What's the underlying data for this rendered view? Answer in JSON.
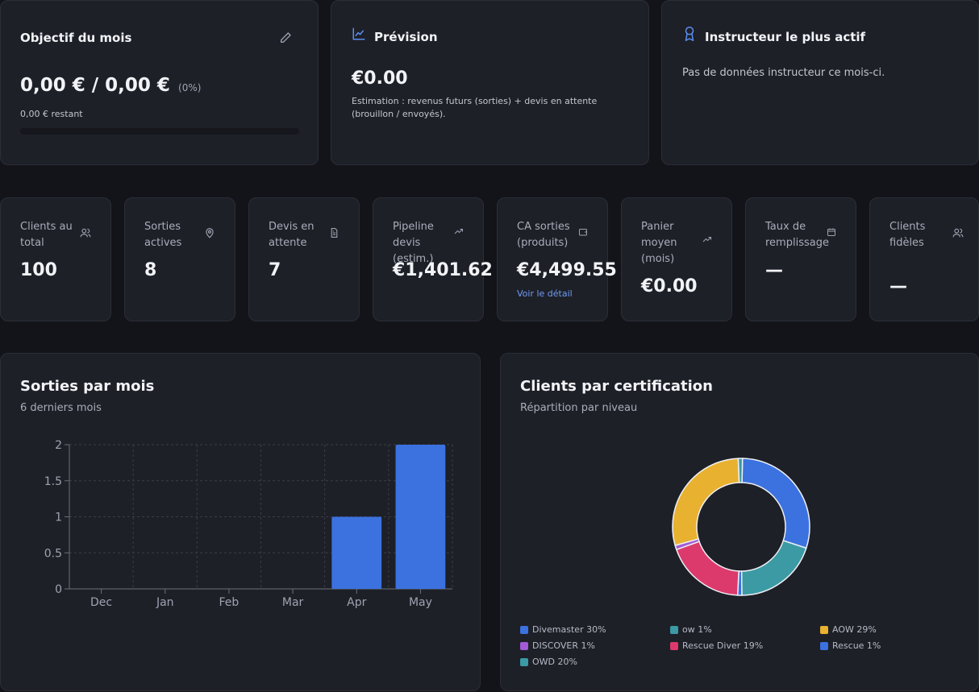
{
  "goal": {
    "title": "Objectif du mois",
    "value": "0,00 € / 0,00 €",
    "percent": "(0%)",
    "remaining": "0,00 € restant",
    "progress": 0
  },
  "forecast": {
    "title": "Prévision",
    "value": "€0.00",
    "note": "Estimation : revenus futurs (sorties) + devis en attente (brouillon / envoyés)."
  },
  "instructor": {
    "title": "Instructeur le plus actif",
    "empty": "Pas de données instructeur ce mois-ci."
  },
  "stats": [
    {
      "label": "Clients au total",
      "value": "100",
      "icon": "users-icon"
    },
    {
      "label": "Sorties actives",
      "value": "8",
      "icon": "map-pin-icon"
    },
    {
      "label": "Devis en attente",
      "value": "7",
      "icon": "file-icon"
    },
    {
      "label": "Pipeline devis (estim.)",
      "value": "€1,401.62",
      "icon": "trending-up-icon"
    },
    {
      "label": "CA sorties (produits)",
      "value": "€4,499.55",
      "icon": "wallet-icon",
      "link": "Voir le détail"
    },
    {
      "label": "Panier moyen (mois)",
      "value": "€0.00",
      "icon": "trending-up-icon"
    },
    {
      "label": "Taux de remplissage",
      "value": "—",
      "icon": "calendar-icon"
    },
    {
      "label": "Clients fidèles",
      "value": "—",
      "icon": "users-icon"
    }
  ],
  "bar_card": {
    "title": "Sorties par mois",
    "subtitle": "6 derniers mois"
  },
  "donut_card": {
    "title": "Clients par certification",
    "subtitle": "Répartition par niveau"
  },
  "colors": {
    "accent": "#3b72e0",
    "background": "#121419",
    "card": "#1e2028"
  },
  "chart_data": [
    {
      "type": "bar",
      "title": "Sorties par mois",
      "categories": [
        "Dec",
        "Jan",
        "Feb",
        "Mar",
        "Apr",
        "May"
      ],
      "values": [
        0,
        0,
        0,
        0,
        1,
        2
      ],
      "ylim": [
        0,
        2
      ],
      "yticks": [
        "0",
        "0.5",
        "1",
        "1.5",
        "2"
      ],
      "grid": true,
      "color": "#3b72e0"
    },
    {
      "type": "pie",
      "title": "Clients par certification",
      "slices": [
        {
          "label": "Divemaster 30%",
          "value": 30,
          "color": "#3b72e0"
        },
        {
          "label": "OWD 20%",
          "value": 20,
          "color": "#3b9aa4"
        },
        {
          "label": "Rescue 1%",
          "value": 1,
          "color": "#3b72e0"
        },
        {
          "label": "Rescue Diver 19%",
          "value": 19,
          "color": "#dc3a6c"
        },
        {
          "label": "DISCOVER 1%",
          "value": 1,
          "color": "#a35bd6"
        },
        {
          "label": "AOW 29%",
          "value": 29,
          "color": "#e9b130"
        },
        {
          "label": "ow 1%",
          "value": 1,
          "color": "#3b9aa4"
        }
      ],
      "legend": [
        {
          "label": "Divemaster 30%",
          "color": "#3b72e0"
        },
        {
          "label": "ow 1%",
          "color": "#3b9aa4"
        },
        {
          "label": "AOW 29%",
          "color": "#e9b130"
        },
        {
          "label": "DISCOVER 1%",
          "color": "#a35bd6"
        },
        {
          "label": "Rescue Diver 19%",
          "color": "#dc3a6c"
        },
        {
          "label": "Rescue 1%",
          "color": "#3b72e0"
        },
        {
          "label": "OWD 20%",
          "color": "#3b9aa4"
        }
      ],
      "legend_position": "bottom"
    }
  ]
}
